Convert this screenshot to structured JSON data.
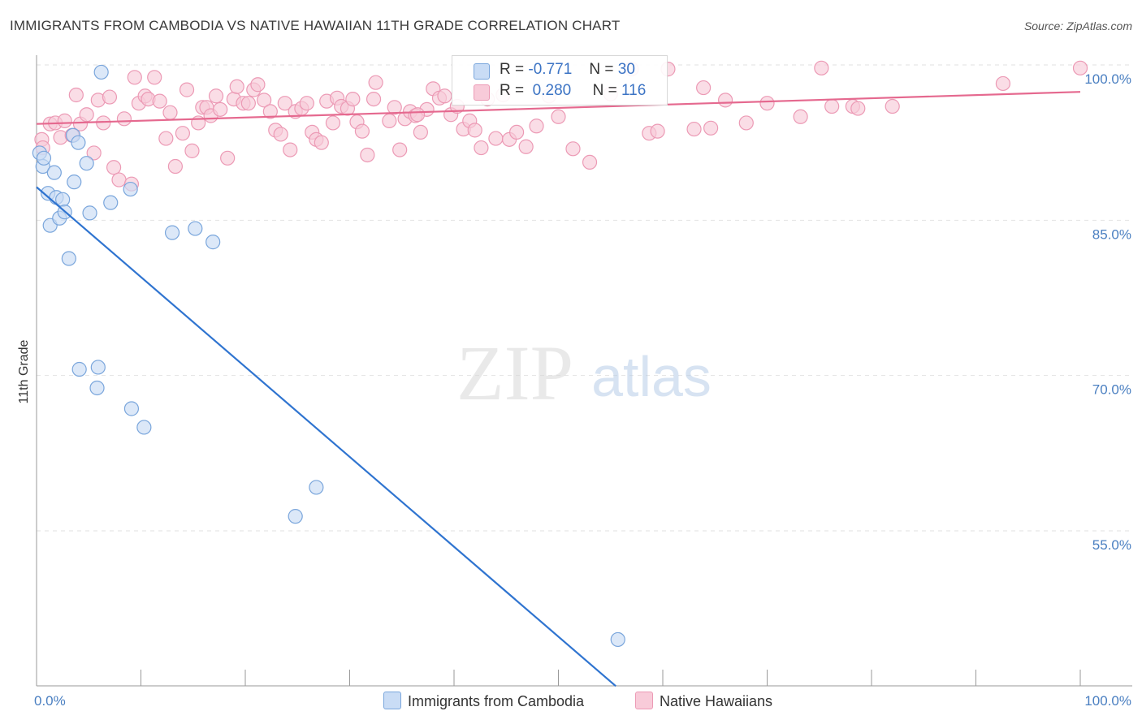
{
  "header": {
    "title": "IMMIGRANTS FROM CAMBODIA VS NATIVE HAWAIIAN 11TH GRADE CORRELATION CHART",
    "source": "Source: ZipAtlas.com"
  },
  "watermark": {
    "zip": "ZIP",
    "atlas": "atlas"
  },
  "legend": {
    "r_label": "R =",
    "n_label": "N =",
    "series": [
      {
        "name": "Immigrants from Cambodia",
        "r": "-0.771",
        "n": "30",
        "color": "#aac8ef"
      },
      {
        "name": "Native Hawaiians",
        "r": "0.280",
        "n": "116",
        "color": "#f5b6c9"
      }
    ]
  },
  "chart_data": {
    "type": "scatter",
    "title": "IMMIGRANTS FROM CAMBODIA VS NATIVE HAWAIIAN 11TH GRADE CORRELATION CHART",
    "xlabel": "",
    "ylabel": "11th Grade",
    "xlim": [
      0,
      105
    ],
    "ylim": [
      40,
      101.5
    ],
    "x_tick_labels": [
      "0.0%",
      "100.0%"
    ],
    "y_ticks": [
      {
        "value": 100,
        "label": "100.0%"
      },
      {
        "value": 85,
        "label": "85.0%"
      },
      {
        "value": 70,
        "label": "70.0%"
      },
      {
        "value": 55,
        "label": "55.0%"
      }
    ],
    "grid": true,
    "legend_position": "top-center",
    "colors": {
      "cambodia_fill": "#c9dcf5",
      "cambodia_stroke": "#7aa6dc",
      "cambodia_line": "#2f74d0",
      "hawaiian_fill": "#f8cbd9",
      "hawaiian_stroke": "#ec9ab5",
      "hawaiian_line": "#e5698f"
    },
    "series": [
      {
        "name": "Immigrants from Cambodia",
        "trend": {
          "x": [
            0,
            55.5
          ],
          "y": [
            88.2,
            40
          ]
        },
        "points": [
          [
            0.3,
            91.5
          ],
          [
            0.6,
            90.2
          ],
          [
            0.7,
            91.0
          ],
          [
            1.1,
            87.6
          ],
          [
            1.3,
            84.5
          ],
          [
            1.7,
            89.6
          ],
          [
            1.9,
            87.2
          ],
          [
            2.2,
            85.2
          ],
          [
            2.5,
            87.0
          ],
          [
            2.7,
            85.8
          ],
          [
            3.1,
            81.3
          ],
          [
            3.5,
            93.2
          ],
          [
            3.6,
            88.7
          ],
          [
            4.0,
            92.5
          ],
          [
            4.8,
            90.5
          ],
          [
            5.1,
            85.7
          ],
          [
            6.2,
            99.3
          ],
          [
            7.1,
            86.7
          ],
          [
            9.0,
            88.0
          ],
          [
            13.0,
            83.8
          ],
          [
            15.2,
            84.2
          ],
          [
            16.9,
            82.9
          ],
          [
            4.1,
            70.6
          ],
          [
            5.9,
            70.8
          ],
          [
            5.8,
            68.8
          ],
          [
            9.1,
            66.8
          ],
          [
            10.3,
            65.0
          ],
          [
            26.8,
            59.2
          ],
          [
            24.8,
            56.4
          ],
          [
            55.7,
            44.5
          ]
        ]
      },
      {
        "name": "Native Hawaiians",
        "trend": {
          "x": [
            0,
            100
          ],
          "y": [
            94.3,
            97.4
          ]
        },
        "points": [
          [
            0.5,
            92.8
          ],
          [
            0.6,
            92.0
          ],
          [
            1.3,
            94.3
          ],
          [
            1.8,
            94.4
          ],
          [
            2.3,
            93.0
          ],
          [
            2.7,
            94.6
          ],
          [
            3.4,
            93.2
          ],
          [
            3.8,
            97.1
          ],
          [
            4.2,
            94.3
          ],
          [
            4.8,
            95.2
          ],
          [
            5.5,
            91.5
          ],
          [
            5.9,
            96.6
          ],
          [
            6.4,
            94.4
          ],
          [
            7.0,
            96.9
          ],
          [
            7.4,
            90.1
          ],
          [
            7.9,
            88.9
          ],
          [
            8.4,
            94.8
          ],
          [
            9.1,
            88.5
          ],
          [
            9.4,
            98.8
          ],
          [
            9.8,
            96.3
          ],
          [
            10.4,
            97.0
          ],
          [
            10.7,
            96.7
          ],
          [
            11.3,
            98.8
          ],
          [
            11.8,
            96.5
          ],
          [
            12.4,
            92.9
          ],
          [
            12.8,
            95.4
          ],
          [
            13.3,
            90.2
          ],
          [
            14.0,
            93.4
          ],
          [
            14.4,
            97.6
          ],
          [
            14.9,
            91.7
          ],
          [
            15.5,
            94.4
          ],
          [
            15.9,
            95.9
          ],
          [
            16.3,
            95.9
          ],
          [
            16.7,
            95.1
          ],
          [
            17.2,
            97.0
          ],
          [
            17.6,
            95.7
          ],
          [
            18.3,
            91.0
          ],
          [
            18.9,
            96.7
          ],
          [
            19.2,
            97.9
          ],
          [
            19.8,
            96.3
          ],
          [
            20.3,
            96.3
          ],
          [
            20.8,
            97.6
          ],
          [
            21.2,
            98.1
          ],
          [
            21.8,
            96.6
          ],
          [
            22.4,
            95.5
          ],
          [
            22.9,
            93.7
          ],
          [
            23.4,
            93.3
          ],
          [
            23.8,
            96.3
          ],
          [
            24.3,
            91.8
          ],
          [
            24.8,
            95.5
          ],
          [
            25.4,
            95.8
          ],
          [
            25.9,
            96.3
          ],
          [
            26.4,
            93.5
          ],
          [
            26.8,
            92.8
          ],
          [
            27.3,
            92.5
          ],
          [
            27.8,
            96.5
          ],
          [
            28.4,
            94.4
          ],
          [
            28.8,
            96.8
          ],
          [
            29.2,
            96.0
          ],
          [
            29.8,
            95.8
          ],
          [
            30.3,
            96.7
          ],
          [
            30.7,
            94.5
          ],
          [
            31.2,
            93.6
          ],
          [
            31.7,
            91.3
          ],
          [
            32.3,
            96.7
          ],
          [
            32.5,
            98.3
          ],
          [
            33.8,
            94.6
          ],
          [
            34.3,
            95.9
          ],
          [
            34.8,
            91.8
          ],
          [
            35.3,
            94.8
          ],
          [
            35.8,
            95.5
          ],
          [
            36.3,
            95.1
          ],
          [
            36.8,
            93.5
          ],
          [
            37.4,
            95.7
          ],
          [
            38.0,
            97.7
          ],
          [
            38.6,
            96.8
          ],
          [
            39.1,
            97.0
          ],
          [
            39.7,
            95.2
          ],
          [
            40.3,
            96.0
          ],
          [
            40.9,
            93.8
          ],
          [
            41.5,
            94.6
          ],
          [
            42.0,
            93.7
          ],
          [
            42.6,
            92.0
          ],
          [
            43.2,
            96.7
          ],
          [
            44.0,
            92.9
          ],
          [
            44.7,
            97.1
          ],
          [
            45.3,
            92.8
          ],
          [
            46.0,
            93.5
          ],
          [
            46.9,
            92.1
          ],
          [
            47.9,
            94.1
          ],
          [
            49.1,
            97.0
          ],
          [
            50.0,
            95.0
          ],
          [
            51.4,
            91.9
          ],
          [
            53.0,
            90.6
          ],
          [
            55.0,
            97.2
          ],
          [
            57.0,
            99.6
          ],
          [
            58.7,
            93.4
          ],
          [
            59.5,
            93.6
          ],
          [
            60.5,
            99.6
          ],
          [
            63.0,
            93.8
          ],
          [
            63.9,
            97.8
          ],
          [
            64.6,
            93.9
          ],
          [
            66.0,
            96.6
          ],
          [
            68.0,
            94.4
          ],
          [
            70.0,
            96.3
          ],
          [
            73.2,
            95.0
          ],
          [
            75.2,
            99.7
          ],
          [
            76.2,
            96.0
          ],
          [
            78.2,
            96.0
          ],
          [
            78.7,
            95.8
          ],
          [
            82.0,
            96.0
          ],
          [
            92.6,
            98.2
          ],
          [
            100.0,
            99.7
          ],
          [
            36.5,
            95.2
          ]
        ]
      }
    ]
  }
}
